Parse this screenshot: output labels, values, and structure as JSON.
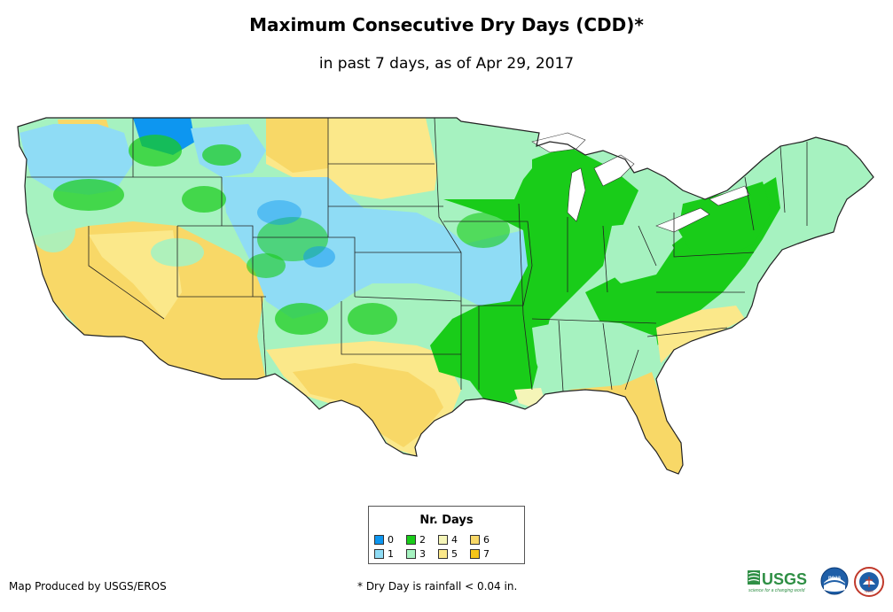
{
  "title": "Maximum Consecutive Dry Days (CDD)*",
  "subtitle": "in past 7 days, as of Apr 29, 2017",
  "legend": {
    "title": "Nr. Days",
    "items": [
      {
        "label": "0",
        "color": "#0d96f0"
      },
      {
        "label": "1",
        "color": "#8fdcf5"
      },
      {
        "label": "2",
        "color": "#19cc19"
      },
      {
        "label": "3",
        "color": "#a6f2c0"
      },
      {
        "label": "4",
        "color": "#f5f5b8"
      },
      {
        "label": "5",
        "color": "#fbe88a"
      },
      {
        "label": "6",
        "color": "#f8d867"
      },
      {
        "label": "7",
        "color": "#f5c518"
      }
    ]
  },
  "credit": "Map Produced by USGS/EROS",
  "footnote": "* Dry Day is rainfall < 0.04 in.",
  "logos": {
    "usgs": "USGS",
    "usgs_tagline": "science for a changing world",
    "noaa": "noaa",
    "nws": "NWS"
  },
  "map": {
    "region": "Contiguous United States",
    "regions": [
      {
        "name": "Pacific Northwest",
        "days": 1
      },
      {
        "name": "California and Great Basin",
        "days": 6
      },
      {
        "name": "Desert Southwest",
        "days": 6
      },
      {
        "name": "Northern Rockies",
        "days": 2
      },
      {
        "name": "Central Rockies",
        "days": 1
      },
      {
        "name": "Northern Plains",
        "days": 5
      },
      {
        "name": "Central Plains",
        "days": 1
      },
      {
        "name": "Southern Plains (Texas)",
        "days": 5
      },
      {
        "name": "Upper Midwest",
        "days": 3
      },
      {
        "name": "Mississippi Valley",
        "days": 2
      },
      {
        "name": "Great Lakes",
        "days": 2
      },
      {
        "name": "Ohio Valley",
        "days": 2
      },
      {
        "name": "Southeast",
        "days": 3
      },
      {
        "name": "Florida and Gulf Coast",
        "days": 6
      },
      {
        "name": "Mid-Atlantic",
        "days": 2
      },
      {
        "name": "New England",
        "days": 3
      }
    ]
  }
}
